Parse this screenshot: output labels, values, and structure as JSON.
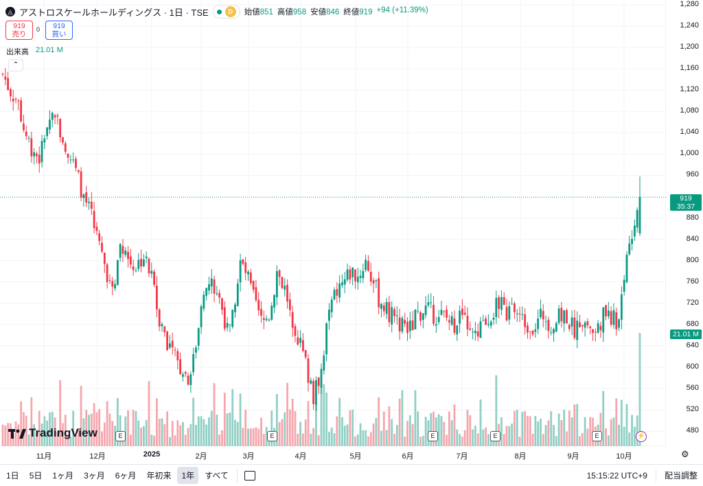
{
  "header": {
    "symbol_icon": "symbol-logo-icon",
    "title": "アストロスケールホールディングス · 1日 · TSE",
    "status_badge": "D",
    "ohlc": [
      {
        "label": "始値",
        "value": "851"
      },
      {
        "label": "高値",
        "value": "958"
      },
      {
        "label": "安値",
        "value": "846"
      },
      {
        "label": "終値",
        "value": "919"
      }
    ],
    "change": "+94 (+11.39%)"
  },
  "trade": {
    "sell_price": "919",
    "sell_label": "売り",
    "spread": "0",
    "buy_price": "919",
    "buy_label": "買い"
  },
  "volume_legend": {
    "label": "出来高",
    "value": "21.01 M"
  },
  "price_axis": {
    "labels": [
      "1,280",
      "1,240",
      "1,200",
      "1,160",
      "1,120",
      "1,080",
      "1,040",
      "1,000",
      "960",
      "880",
      "840",
      "800",
      "760",
      "720",
      "680",
      "640",
      "600",
      "560",
      "520",
      "480"
    ]
  },
  "price_tag": {
    "price": "919",
    "countdown": "35:37"
  },
  "volume_tag": "21.01 M",
  "time_axis": {
    "labels": [
      "11月",
      "12月",
      "2025",
      "2月",
      "3月",
      "4月",
      "5月",
      "6月",
      "7月",
      "8月",
      "9月",
      "10月"
    ]
  },
  "watermark": "TradingView",
  "events": {
    "earnings_label": "E",
    "earnings_count": 5,
    "flash_icon": "lightning-icon"
  },
  "bottom_bar": {
    "ranges": [
      "1日",
      "5日",
      "1ヶ月",
      "3ヶ月",
      "6ヶ月",
      "年初来",
      "1年",
      "すべて"
    ],
    "active_range": "1年",
    "time": "15:15:22 UTC+9",
    "adjust": "配当調整"
  },
  "colors": {
    "up": "#089981",
    "down": "#f23645",
    "up_vol": "#8fcfc4",
    "down_vol": "#f5a6ac",
    "grid": "#f0f3fa"
  },
  "chart_data": {
    "type": "candlestick",
    "title": "アストロスケールホールディングス · 1日 · TSE",
    "ylim": [
      460,
      1290
    ],
    "x": [
      "10月",
      "11月",
      "12月",
      "2025",
      "2月",
      "3月",
      "4月",
      "5月",
      "6月",
      "7月",
      "8月",
      "9月",
      "10月"
    ],
    "close_path": [
      1150,
      1120,
      1100,
      1040,
      1010,
      990,
      1060,
      1080,
      1040,
      1000,
      960,
      920,
      880,
      830,
      780,
      760,
      840,
      800,
      790,
      810,
      770,
      700,
      660,
      620,
      600,
      580,
      640,
      720,
      760,
      740,
      690,
      700,
      800,
      770,
      720,
      680,
      700,
      780,
      750,
      700,
      650,
      600,
      540,
      600,
      700,
      740,
      760,
      780,
      770,
      800,
      760,
      720,
      700,
      690,
      680,
      670,
      700,
      710,
      700,
      700,
      690,
      680,
      700,
      660,
      650,
      690,
      700,
      720,
      700,
      710,
      690,
      680,
      680,
      700,
      680,
      690,
      700,
      670,
      690,
      680,
      660,
      700,
      700,
      680,
      790,
      860,
      919
    ],
    "last": {
      "open": 851,
      "high": 958,
      "low": 846,
      "close": 919,
      "volume": "21.01 M"
    }
  }
}
